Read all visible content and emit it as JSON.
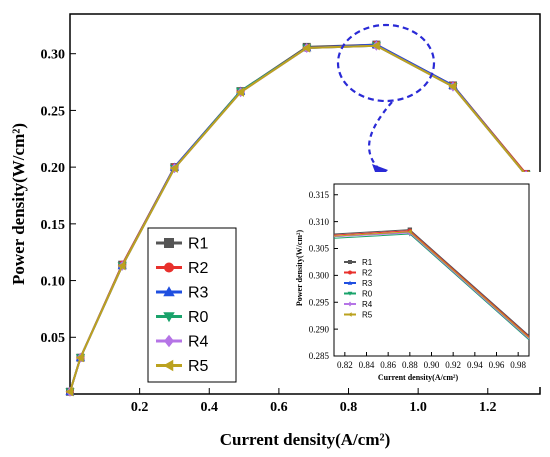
{
  "chart_data": [
    {
      "type": "line",
      "xlabel": "Current density(A/cm²)",
      "ylabel": "Power density(W/cm²)",
      "xlim": [
        0.0,
        1.35
      ],
      "ylim": [
        0.0,
        0.335
      ],
      "xticks": [
        "0.2",
        "0.4",
        "0.6",
        "0.8",
        "1.0",
        "1.2"
      ],
      "yticks": [
        "0.05",
        "0.10",
        "0.15",
        "0.20",
        "0.25",
        "0.30"
      ],
      "legend_position": "lower-left",
      "x": [
        0.0,
        0.03,
        0.15,
        0.3,
        0.49,
        0.68,
        0.88,
        1.1,
        1.31
      ],
      "series": [
        {
          "name": "R1",
          "color": "#555555",
          "marker": "square",
          "values": [
            0.002,
            0.032,
            0.114,
            0.2,
            0.267,
            0.306,
            0.308,
            0.272,
            0.194
          ]
        },
        {
          "name": "R2",
          "color": "#e8302c",
          "marker": "circle",
          "values": [
            0.002,
            0.032,
            0.114,
            0.2,
            0.267,
            0.305,
            0.308,
            0.272,
            0.194
          ]
        },
        {
          "name": "R3",
          "color": "#1f4fe0",
          "marker": "triangle-up",
          "values": [
            0.002,
            0.032,
            0.113,
            0.2,
            0.267,
            0.305,
            0.308,
            0.272,
            0.193
          ]
        },
        {
          "name": "R0",
          "color": "#1aa36b",
          "marker": "triangle-down",
          "values": [
            0.002,
            0.032,
            0.113,
            0.199,
            0.267,
            0.305,
            0.307,
            0.271,
            0.193
          ]
        },
        {
          "name": "R4",
          "color": "#b574e6",
          "marker": "diamond",
          "values": [
            0.002,
            0.032,
            0.113,
            0.199,
            0.266,
            0.305,
            0.307,
            0.271,
            0.193
          ]
        },
        {
          "name": "R5",
          "color": "#bba21f",
          "marker": "triangle-left",
          "values": [
            0.002,
            0.032,
            0.113,
            0.199,
            0.266,
            0.305,
            0.307,
            0.271,
            0.193
          ]
        }
      ]
    },
    {
      "type": "line",
      "xlabel": "Current density(A/cm²)",
      "ylabel": "Power density(W/cm²)",
      "xlim": [
        0.81,
        0.99
      ],
      "ylim": [
        0.285,
        0.317
      ],
      "xticks": [
        "0.82",
        "0.84",
        "0.86",
        "0.88",
        "0.90",
        "0.92",
        "0.94",
        "0.96",
        "0.98"
      ],
      "yticks": [
        "0.285",
        "0.290",
        "0.295",
        "0.300",
        "0.305",
        "0.310",
        "0.315"
      ],
      "legend_position": "center-left",
      "x": [
        0.81,
        0.88,
        0.99
      ],
      "series": [
        {
          "name": "R1",
          "color": "#555555",
          "marker": "square",
          "values": [
            0.3077,
            0.3085,
            0.2888
          ]
        },
        {
          "name": "R2",
          "color": "#e8302c",
          "marker": "circle",
          "values": [
            0.3075,
            0.3083,
            0.2886
          ]
        },
        {
          "name": "R3",
          "color": "#1f4fe0",
          "marker": "triangle-up",
          "values": [
            0.3072,
            0.308,
            0.2883
          ]
        },
        {
          "name": "R0",
          "color": "#1aa36b",
          "marker": "triangle-down",
          "values": [
            0.3069,
            0.3077,
            0.288
          ]
        },
        {
          "name": "R4",
          "color": "#b574e6",
          "marker": "diamond",
          "values": [
            0.3072,
            0.3079,
            0.2882
          ]
        },
        {
          "name": "R5",
          "color": "#bba21f",
          "marker": "triangle-left",
          "values": [
            0.3073,
            0.3081,
            0.2884
          ]
        }
      ]
    }
  ],
  "annotation": {
    "color": "#2a2ad6",
    "style": "dashed circle with arrow to inset"
  }
}
